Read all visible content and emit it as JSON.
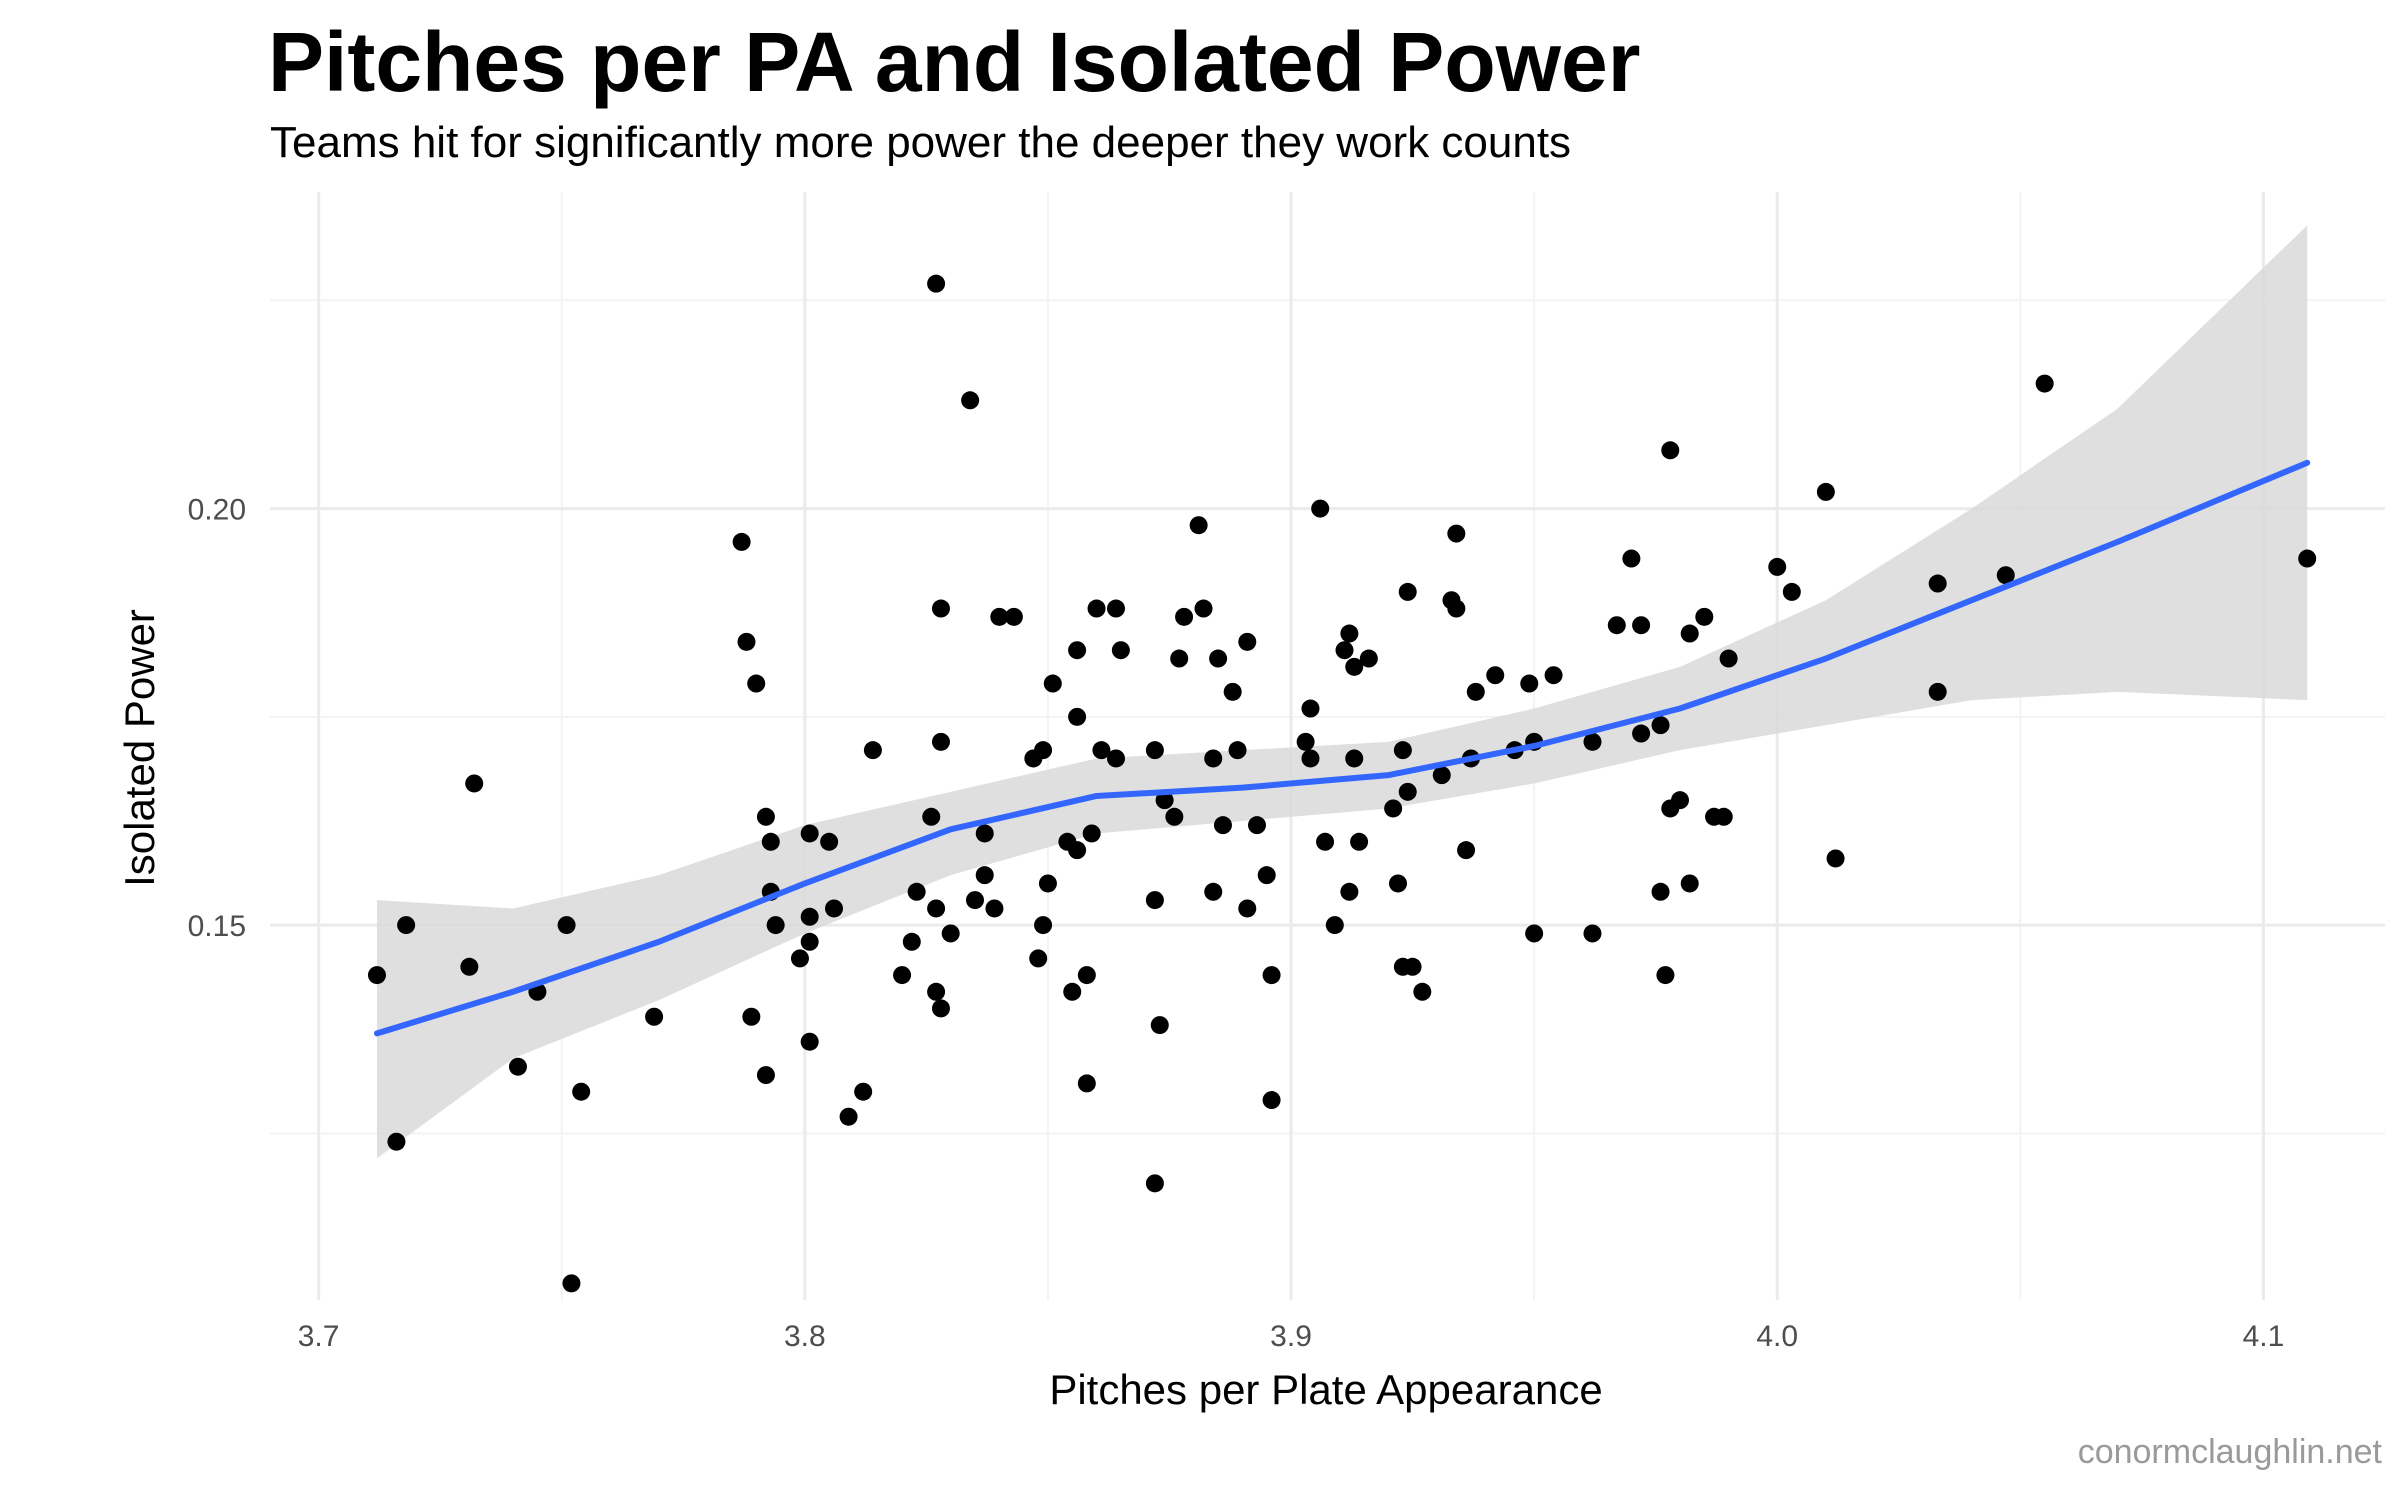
{
  "chart_data": {
    "type": "scatter",
    "title": "Pitches per PA and Isolated Power",
    "subtitle": "Teams hit for significantly more power the deeper they work counts",
    "xlabel": "Pitches per Plate Appearance",
    "ylabel": "Isolated Power",
    "caption": "conormclaughlin.net",
    "xlim": [
      3.69,
      4.125
    ],
    "ylim": [
      0.105,
      0.238
    ],
    "x_ticks": [
      "3.7",
      "3.8",
      "3.9",
      "4.0",
      "4.1"
    ],
    "y_ticks": [
      "0.15",
      "0.20"
    ],
    "grid": true,
    "point_color": "#000000",
    "smooth_color": "#3366FF",
    "band_color": "#D9D9D9",
    "points": [
      [
        3.712,
        0.144
      ],
      [
        3.716,
        0.124
      ],
      [
        3.718,
        0.15
      ],
      [
        3.731,
        0.145
      ],
      [
        3.732,
        0.167
      ],
      [
        3.741,
        0.133
      ],
      [
        3.745,
        0.142
      ],
      [
        3.751,
        0.15
      ],
      [
        3.752,
        0.107
      ],
      [
        3.754,
        0.13
      ],
      [
        3.769,
        0.139
      ],
      [
        3.787,
        0.196
      ],
      [
        3.788,
        0.184
      ],
      [
        3.789,
        0.139
      ],
      [
        3.79,
        0.179
      ],
      [
        3.792,
        0.132
      ],
      [
        3.792,
        0.163
      ],
      [
        3.793,
        0.16
      ],
      [
        3.793,
        0.154
      ],
      [
        3.794,
        0.15
      ],
      [
        3.799,
        0.146
      ],
      [
        3.801,
        0.148
      ],
      [
        3.801,
        0.151
      ],
      [
        3.801,
        0.136
      ],
      [
        3.801,
        0.161
      ],
      [
        3.805,
        0.16
      ],
      [
        3.806,
        0.152
      ],
      [
        3.809,
        0.127
      ],
      [
        3.812,
        0.13
      ],
      [
        3.814,
        0.171
      ],
      [
        3.82,
        0.144
      ],
      [
        3.822,
        0.148
      ],
      [
        3.823,
        0.154
      ],
      [
        3.826,
        0.163
      ],
      [
        3.827,
        0.152
      ],
      [
        3.827,
        0.227
      ],
      [
        3.827,
        0.142
      ],
      [
        3.828,
        0.188
      ],
      [
        3.828,
        0.172
      ],
      [
        3.828,
        0.14
      ],
      [
        3.83,
        0.149
      ],
      [
        3.834,
        0.213
      ],
      [
        3.835,
        0.153
      ],
      [
        3.837,
        0.161
      ],
      [
        3.837,
        0.156
      ],
      [
        3.839,
        0.152
      ],
      [
        3.84,
        0.187
      ],
      [
        3.843,
        0.187
      ],
      [
        3.847,
        0.17
      ],
      [
        3.848,
        0.146
      ],
      [
        3.849,
        0.15
      ],
      [
        3.849,
        0.171
      ],
      [
        3.85,
        0.155
      ],
      [
        3.851,
        0.179
      ],
      [
        3.854,
        0.16
      ],
      [
        3.855,
        0.142
      ],
      [
        3.856,
        0.159
      ],
      [
        3.856,
        0.175
      ],
      [
        3.856,
        0.183
      ],
      [
        3.858,
        0.144
      ],
      [
        3.858,
        0.131
      ],
      [
        3.859,
        0.161
      ],
      [
        3.86,
        0.188
      ],
      [
        3.861,
        0.171
      ],
      [
        3.864,
        0.188
      ],
      [
        3.864,
        0.17
      ],
      [
        3.865,
        0.183
      ],
      [
        3.872,
        0.119
      ],
      [
        3.872,
        0.171
      ],
      [
        3.872,
        0.153
      ],
      [
        3.873,
        0.138
      ],
      [
        3.874,
        0.165
      ],
      [
        3.876,
        0.163
      ],
      [
        3.877,
        0.182
      ],
      [
        3.878,
        0.187
      ],
      [
        3.881,
        0.198
      ],
      [
        3.882,
        0.188
      ],
      [
        3.884,
        0.154
      ],
      [
        3.884,
        0.17
      ],
      [
        3.885,
        0.182
      ],
      [
        3.886,
        0.162
      ],
      [
        3.888,
        0.178
      ],
      [
        3.889,
        0.171
      ],
      [
        3.891,
        0.184
      ],
      [
        3.891,
        0.152
      ],
      [
        3.893,
        0.162
      ],
      [
        3.895,
        0.156
      ],
      [
        3.896,
        0.144
      ],
      [
        3.896,
        0.129
      ],
      [
        3.903,
        0.172
      ],
      [
        3.904,
        0.176
      ],
      [
        3.904,
        0.17
      ],
      [
        3.906,
        0.2
      ],
      [
        3.907,
        0.16
      ],
      [
        3.909,
        0.15
      ],
      [
        3.911,
        0.183
      ],
      [
        3.912,
        0.154
      ],
      [
        3.912,
        0.185
      ],
      [
        3.913,
        0.181
      ],
      [
        3.913,
        0.17
      ],
      [
        3.914,
        0.16
      ],
      [
        3.916,
        0.182
      ],
      [
        3.921,
        0.164
      ],
      [
        3.922,
        0.155
      ],
      [
        3.923,
        0.145
      ],
      [
        3.923,
        0.171
      ],
      [
        3.924,
        0.19
      ],
      [
        3.924,
        0.166
      ],
      [
        3.925,
        0.145
      ],
      [
        3.927,
        0.142
      ],
      [
        3.931,
        0.168
      ],
      [
        3.933,
        0.189
      ],
      [
        3.934,
        0.188
      ],
      [
        3.934,
        0.197
      ],
      [
        3.936,
        0.159
      ],
      [
        3.937,
        0.17
      ],
      [
        3.938,
        0.178
      ],
      [
        3.942,
        0.18
      ],
      [
        3.946,
        0.171
      ],
      [
        3.949,
        0.179
      ],
      [
        3.95,
        0.149
      ],
      [
        3.95,
        0.172
      ],
      [
        3.954,
        0.18
      ],
      [
        3.962,
        0.172
      ],
      [
        3.962,
        0.149
      ],
      [
        3.967,
        0.186
      ],
      [
        3.97,
        0.194
      ],
      [
        3.972,
        0.186
      ],
      [
        3.972,
        0.173
      ],
      [
        3.976,
        0.174
      ],
      [
        3.976,
        0.154
      ],
      [
        3.977,
        0.144
      ],
      [
        3.978,
        0.207
      ],
      [
        3.978,
        0.164
      ],
      [
        3.98,
        0.165
      ],
      [
        3.982,
        0.155
      ],
      [
        3.982,
        0.185
      ],
      [
        3.985,
        0.187
      ],
      [
        3.987,
        0.163
      ],
      [
        3.989,
        0.163
      ],
      [
        3.99,
        0.182
      ],
      [
        4.0,
        0.193
      ],
      [
        4.003,
        0.19
      ],
      [
        4.01,
        0.202
      ],
      [
        4.012,
        0.158
      ],
      [
        4.033,
        0.191
      ],
      [
        4.033,
        0.178
      ],
      [
        4.047,
        0.192
      ],
      [
        4.055,
        0.215
      ],
      [
        4.109,
        0.194
      ]
    ],
    "smooth_line": {
      "x": [
        3.712,
        3.74,
        3.77,
        3.8,
        3.83,
        3.86,
        3.89,
        3.92,
        3.95,
        3.98,
        4.01,
        4.04,
        4.07,
        4.109
      ],
      "y": [
        0.137,
        0.142,
        0.148,
        0.155,
        0.1615,
        0.1655,
        0.1665,
        0.168,
        0.1715,
        0.176,
        0.182,
        0.189,
        0.196,
        0.2055
      ],
      "lo": [
        0.122,
        0.134,
        0.141,
        0.149,
        0.156,
        0.161,
        0.1625,
        0.164,
        0.167,
        0.171,
        0.174,
        0.177,
        0.178,
        0.177
      ],
      "hi": [
        0.153,
        0.152,
        0.156,
        0.162,
        0.166,
        0.17,
        0.171,
        0.172,
        0.176,
        0.181,
        0.189,
        0.2,
        0.212,
        0.234
      ]
    }
  }
}
